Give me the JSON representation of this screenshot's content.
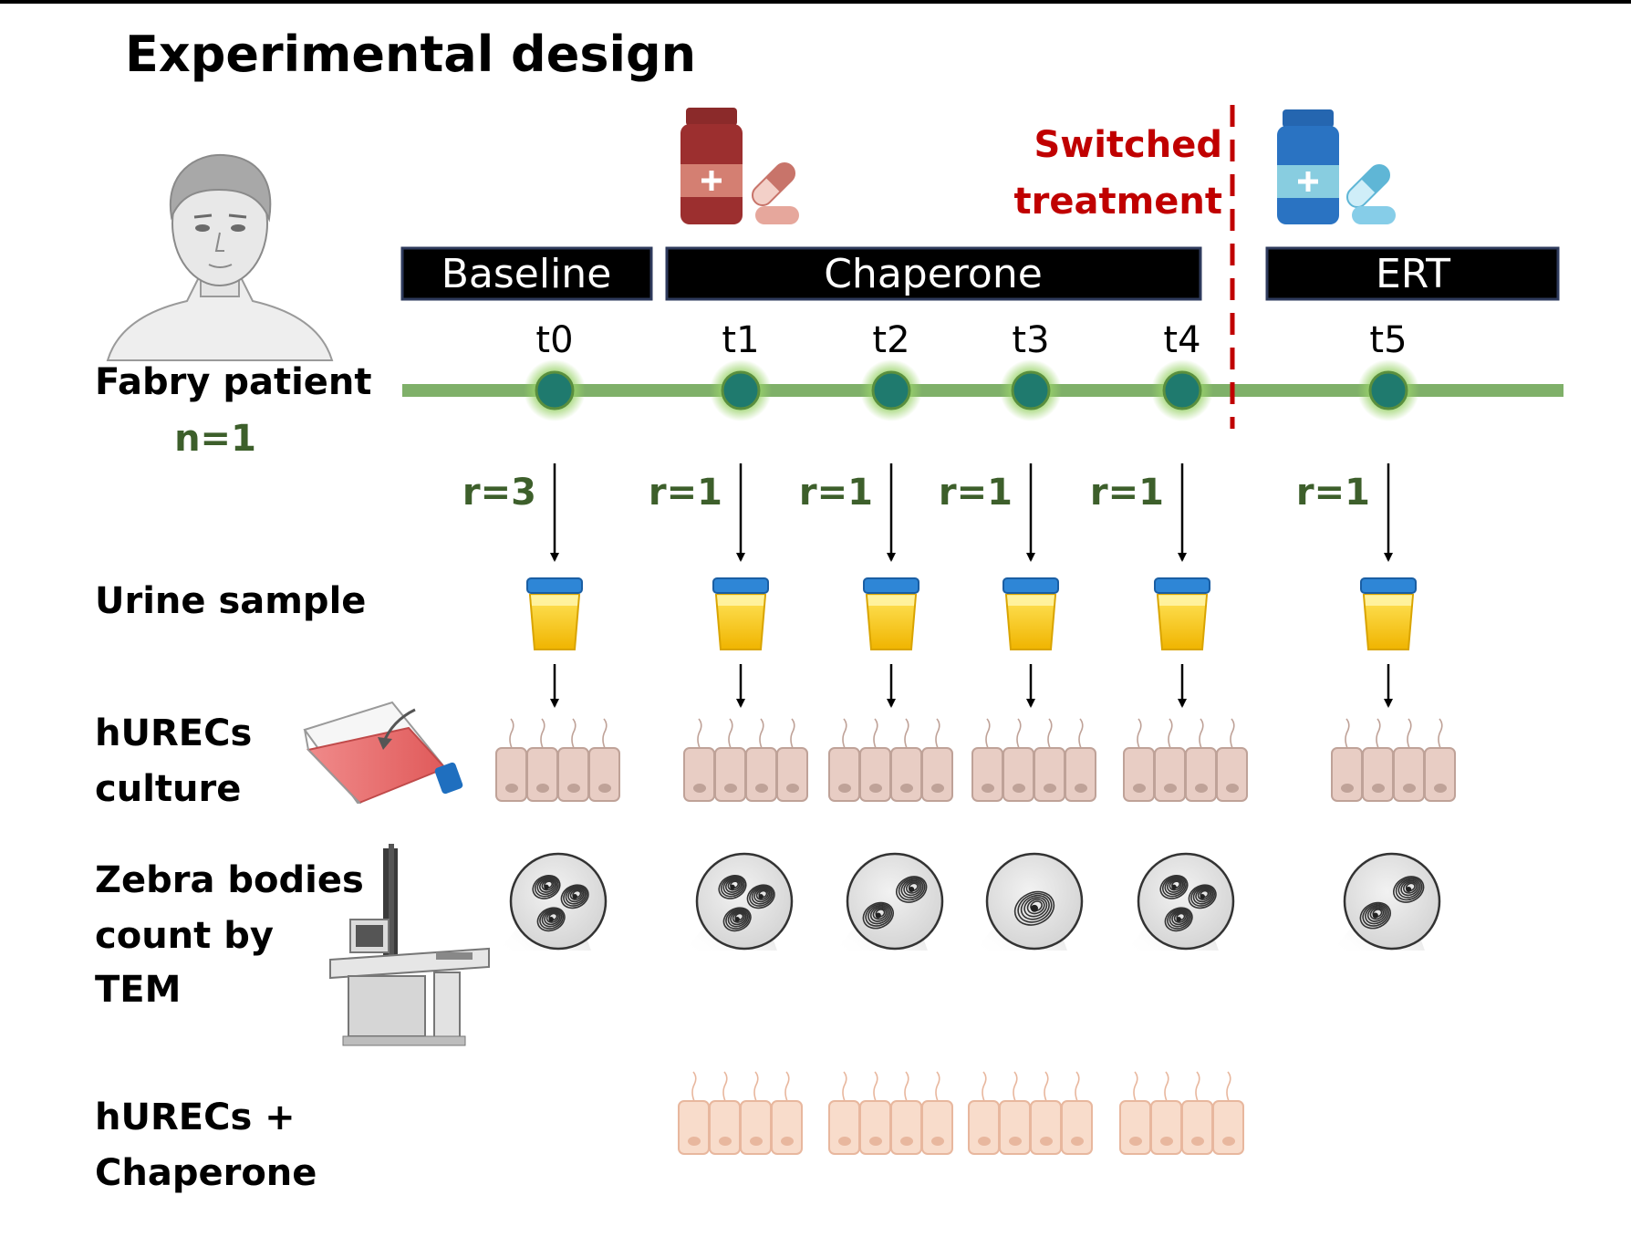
{
  "title": "Experimental design",
  "patient": {
    "label": "Fabry patient",
    "n": "n=1"
  },
  "phases": [
    {
      "label": "Baseline"
    },
    {
      "label": "Chaperone"
    },
    {
      "label": "ERT"
    }
  ],
  "switch_label": [
    "Switched",
    "treatment"
  ],
  "timepoints": [
    {
      "label": "t0",
      "replicates": "r=3",
      "zebra_bodies": 3,
      "chaperone_culture": false
    },
    {
      "label": "t1",
      "replicates": "r=1",
      "zebra_bodies": 3,
      "chaperone_culture": true
    },
    {
      "label": "t2",
      "replicates": "r=1",
      "zebra_bodies": 2,
      "chaperone_culture": true
    },
    {
      "label": "t3",
      "replicates": "r=1",
      "zebra_bodies": 1,
      "chaperone_culture": true
    },
    {
      "label": "t4",
      "replicates": "r=1",
      "zebra_bodies": 3,
      "chaperone_culture": true
    },
    {
      "label": "t5",
      "replicates": "r=1",
      "zebra_bodies": 2,
      "chaperone_culture": false
    }
  ],
  "rows": {
    "urine": "Urine sample",
    "hurecs": [
      "hURECs",
      "culture"
    ],
    "zebra": [
      "Zebra bodies",
      "count by",
      "TEM"
    ],
    "hurecs_chaperone": [
      "hURECs +",
      "Chaperone"
    ]
  },
  "icons": {
    "patient": "person-bust-icon",
    "chaperone_drug": "medicine-bottle-red-icon",
    "ert_drug": "medicine-bottle-blue-icon",
    "urine_cup": "urine-cup-icon",
    "culture_flask": "culture-flask-icon",
    "microscope": "electron-microscope-icon",
    "cells": "epithelial-cells-icon",
    "zebra_body": "zebra-body-icon"
  },
  "colors": {
    "timeline": "#7fb069",
    "node": "#1f7a6e",
    "switch": "#c00000",
    "green_text": "#3d5f2b",
    "phase_bg": "#000000",
    "cells": "#e8cdc4",
    "cells_chaperone": "#f8dccb"
  }
}
